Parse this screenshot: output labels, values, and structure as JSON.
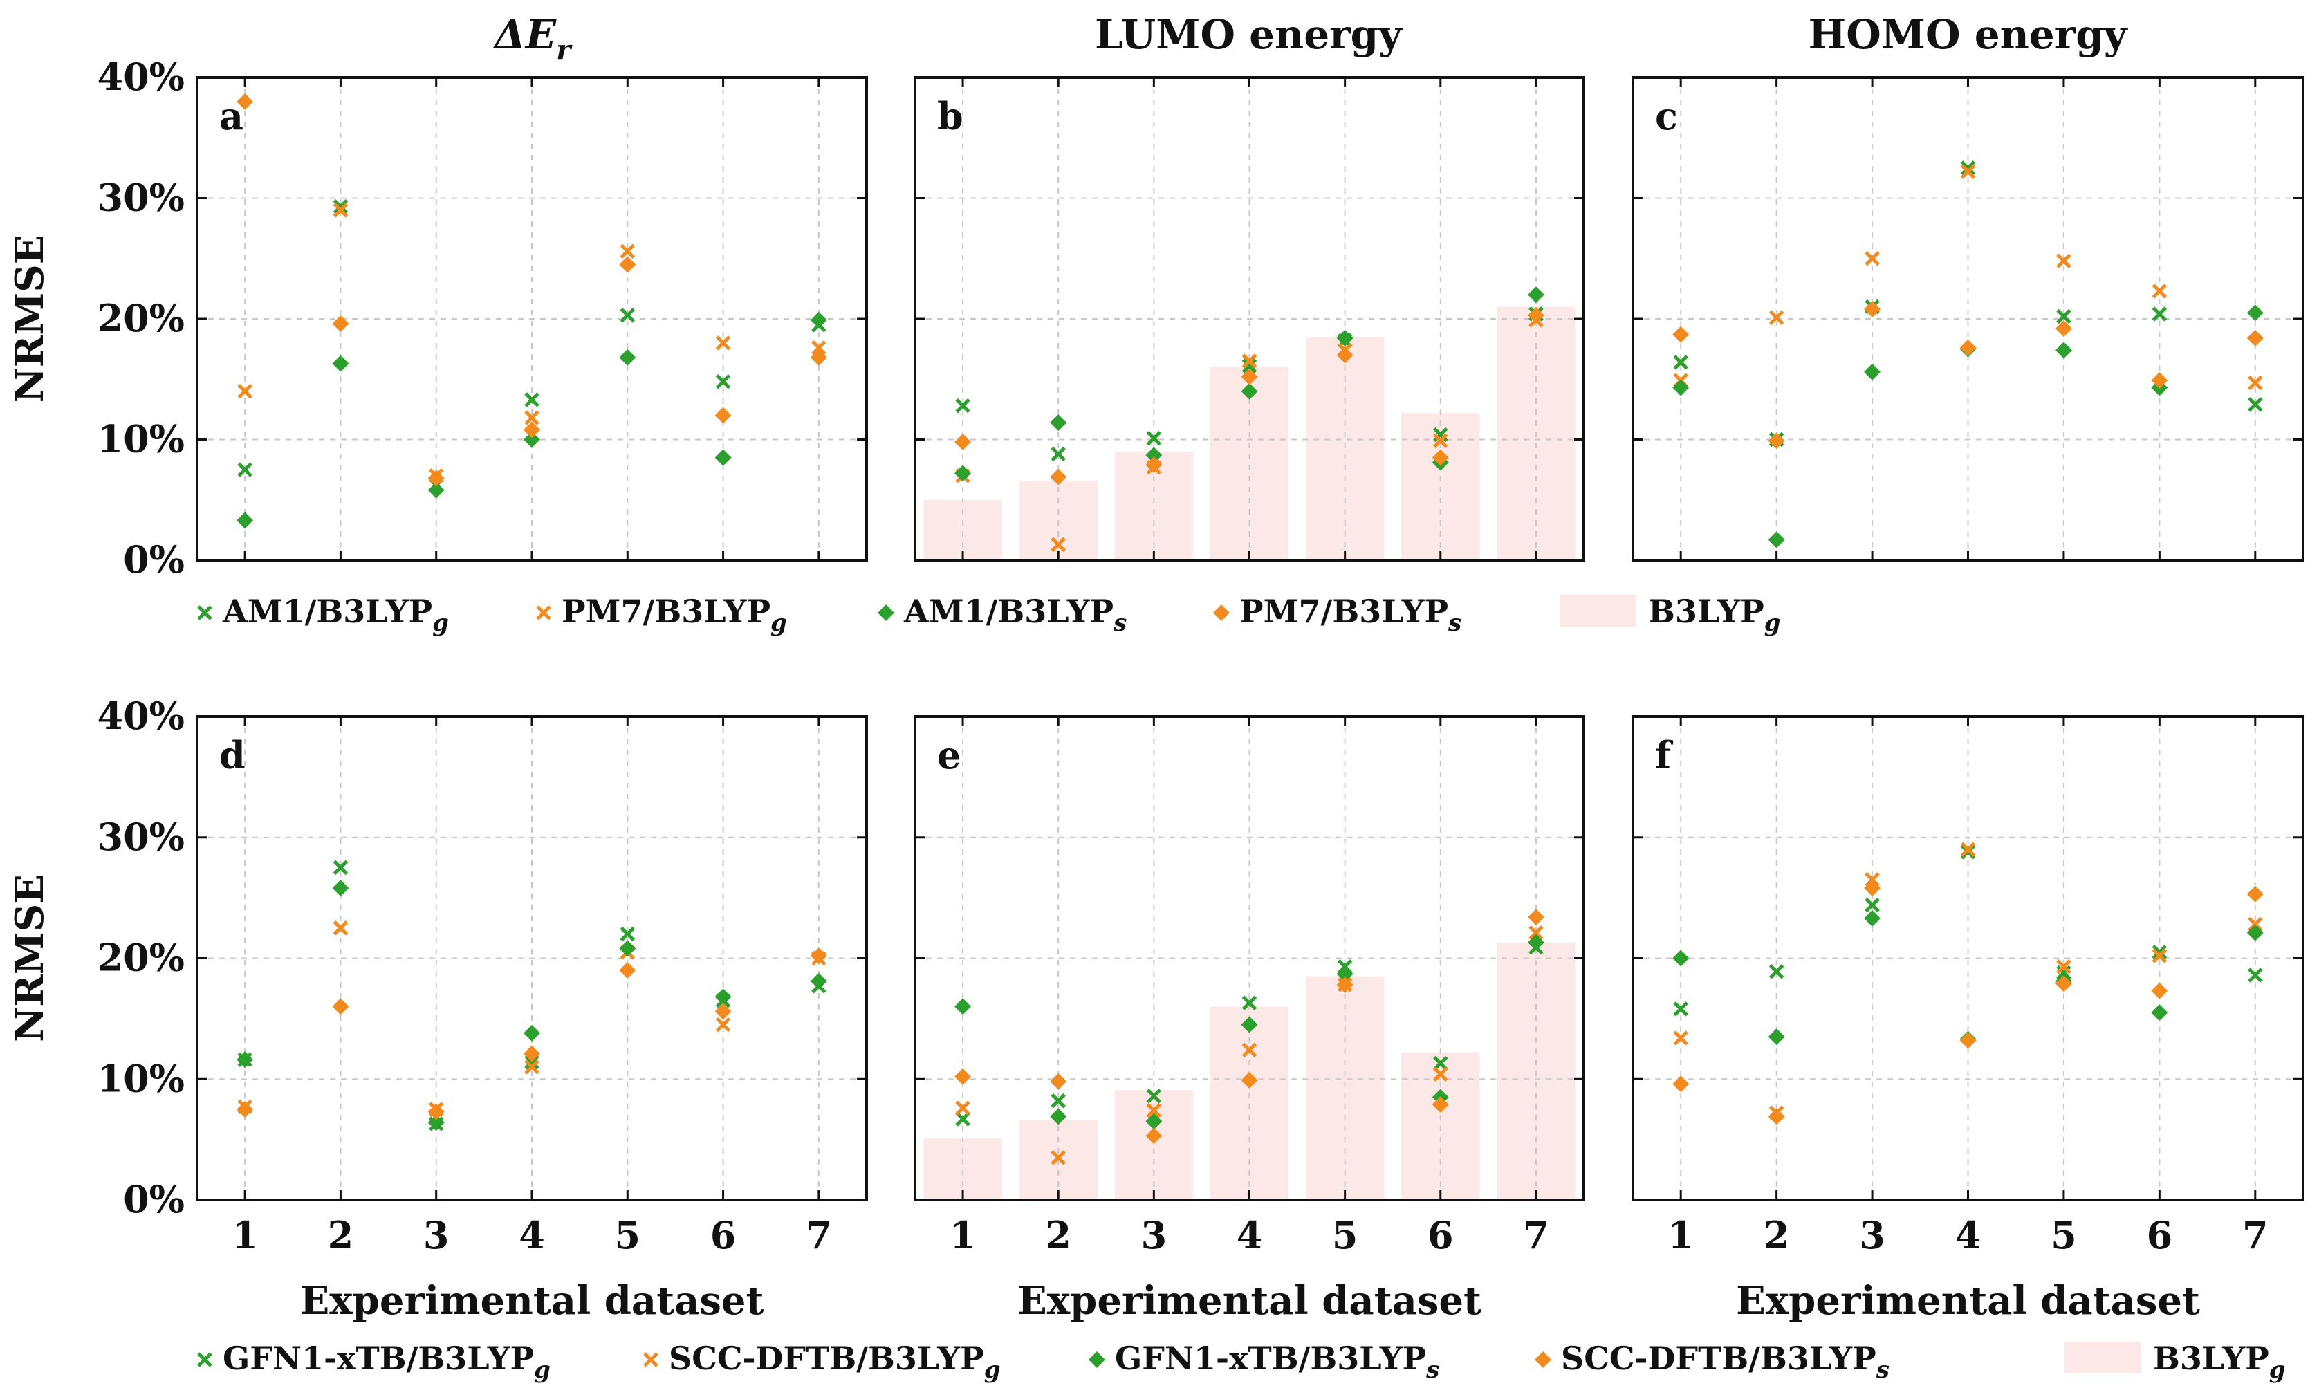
{
  "colors": {
    "green": "#2ca02c",
    "orange": "#f28a1e",
    "bar": "#fde8e8",
    "axis": "#111111"
  },
  "column_titles": [
    "LUMO energy",
    "HOMO energy"
  ],
  "column_title_math": {
    "symbol": "ΔE",
    "subscript": "r"
  },
  "legends": [
    {
      "entries": [
        {
          "marker": "x",
          "color": "green",
          "label": "AM1/B3LYP",
          "sub": "g"
        },
        {
          "marker": "x",
          "color": "orange",
          "label": "PM7/B3LYP",
          "sub": "g"
        },
        {
          "marker": "diamond",
          "color": "green",
          "label": "AM1/B3LYP",
          "sub": "s"
        },
        {
          "marker": "diamond",
          "color": "orange",
          "label": "PM7/B3LYP",
          "sub": "s"
        },
        {
          "marker": "bar",
          "color": "bar",
          "label": "B3LYP",
          "sub": "g"
        }
      ]
    },
    {
      "entries": [
        {
          "marker": "x",
          "color": "green",
          "label": "GFN1-xTB/B3LYP",
          "sub": "g"
        },
        {
          "marker": "x",
          "color": "orange",
          "label": "SCC-DFTB/B3LYP",
          "sub": "g"
        },
        {
          "marker": "diamond",
          "color": "green",
          "label": "GFN1-xTB/B3LYP",
          "sub": "s"
        },
        {
          "marker": "diamond",
          "color": "orange",
          "label": "SCC-DFTB/B3LYP",
          "sub": "s"
        },
        {
          "marker": "bar",
          "color": "bar",
          "label": "B3LYP",
          "sub": "g"
        }
      ]
    }
  ],
  "chart_data": [
    {
      "type": "scatter",
      "panel": "a",
      "row": 0,
      "col": 0,
      "xlabel": "",
      "ylabel": "NRMSE",
      "categories": [
        "1",
        "2",
        "3",
        "4",
        "5",
        "6",
        "7"
      ],
      "yticks": [
        "0%",
        "10%",
        "20%",
        "30%",
        "40%"
      ],
      "ylim": [
        0,
        40
      ],
      "grid": true,
      "bars": null,
      "series": [
        {
          "name": "AM1/B3LYP_g",
          "marker": "x",
          "color": "green",
          "values": [
            7.5,
            29.3,
            6.2,
            13.3,
            20.3,
            14.8,
            19.5
          ]
        },
        {
          "name": "PM7/B3LYP_g",
          "marker": "x",
          "color": "orange",
          "values": [
            14.0,
            29.0,
            7.0,
            11.8,
            25.6,
            18.0,
            17.6
          ]
        },
        {
          "name": "AM1/B3LYP_s",
          "marker": "diamond",
          "color": "green",
          "values": [
            3.3,
            16.3,
            5.8,
            10.0,
            16.8,
            8.5,
            19.9
          ]
        },
        {
          "name": "PM7/B3LYP_s",
          "marker": "diamond",
          "color": "orange",
          "values": [
            38.0,
            19.6,
            6.8,
            10.8,
            24.5,
            12.0,
            16.8
          ]
        }
      ]
    },
    {
      "type": "scatter",
      "panel": "b",
      "row": 0,
      "col": 1,
      "xlabel": "",
      "ylabel": "",
      "categories": [
        "1",
        "2",
        "3",
        "4",
        "5",
        "6",
        "7"
      ],
      "yticks": [
        "0%",
        "10%",
        "20%",
        "30%",
        "40%"
      ],
      "ylim": [
        0,
        40
      ],
      "grid": true,
      "bars": [
        5.0,
        6.6,
        9.0,
        16.0,
        18.5,
        12.2,
        21.0
      ],
      "series": [
        {
          "name": "AM1/B3LYP_g",
          "marker": "x",
          "color": "green",
          "values": [
            12.8,
            8.8,
            10.1,
            16.1,
            18.2,
            10.4,
            20.4
          ]
        },
        {
          "name": "PM7/B3LYP_g",
          "marker": "x",
          "color": "orange",
          "values": [
            7.0,
            1.3,
            7.7,
            16.5,
            17.4,
            9.9,
            19.9
          ]
        },
        {
          "name": "AM1/B3LYP_s",
          "marker": "diamond",
          "color": "green",
          "values": [
            7.2,
            11.4,
            8.7,
            14.0,
            18.4,
            8.1,
            22.0
          ]
        },
        {
          "name": "PM7/B3LYP_s",
          "marker": "diamond",
          "color": "orange",
          "values": [
            9.8,
            6.9,
            7.9,
            15.2,
            17.0,
            8.5,
            20.3
          ]
        }
      ]
    },
    {
      "type": "scatter",
      "panel": "c",
      "row": 0,
      "col": 2,
      "xlabel": "",
      "ylabel": "",
      "categories": [
        "1",
        "2",
        "3",
        "4",
        "5",
        "6",
        "7"
      ],
      "yticks": [
        "0%",
        "10%",
        "20%",
        "30%",
        "40%"
      ],
      "ylim": [
        0,
        40
      ],
      "grid": true,
      "bars": null,
      "series": [
        {
          "name": "AM1/B3LYP_g",
          "marker": "x",
          "color": "green",
          "values": [
            16.4,
            10.0,
            21.0,
            32.5,
            20.2,
            20.4,
            12.9
          ]
        },
        {
          "name": "PM7/B3LYP_g",
          "marker": "x",
          "color": "orange",
          "values": [
            14.9,
            20.1,
            25.0,
            32.2,
            24.8,
            22.3,
            14.7
          ]
        },
        {
          "name": "AM1/B3LYP_s",
          "marker": "diamond",
          "color": "green",
          "values": [
            14.3,
            1.7,
            15.6,
            17.5,
            17.4,
            14.3,
            20.5
          ]
        },
        {
          "name": "PM7/B3LYP_s",
          "marker": "diamond",
          "color": "orange",
          "values": [
            18.7,
            9.9,
            20.8,
            17.6,
            19.2,
            14.9,
            18.4
          ]
        }
      ]
    },
    {
      "type": "scatter",
      "panel": "d",
      "row": 1,
      "col": 0,
      "xlabel": "Experimental dataset",
      "ylabel": "NRMSE",
      "categories": [
        "1",
        "2",
        "3",
        "4",
        "5",
        "6",
        "7"
      ],
      "yticks": [
        "0%",
        "10%",
        "20%",
        "30%",
        "40%"
      ],
      "ylim": [
        0,
        40
      ],
      "grid": true,
      "bars": null,
      "series": [
        {
          "name": "GFN1-xTB/B3LYP_g",
          "marker": "x",
          "color": "green",
          "values": [
            11.6,
            27.5,
            6.3,
            11.4,
            22.0,
            16.5,
            17.7
          ]
        },
        {
          "name": "SCC-DFTB/B3LYP_g",
          "marker": "x",
          "color": "orange",
          "values": [
            7.7,
            22.5,
            7.5,
            11.0,
            20.5,
            14.5,
            20.0
          ]
        },
        {
          "name": "GFN1-xTB/B3LYP_s",
          "marker": "diamond",
          "color": "green",
          "values": [
            11.6,
            25.8,
            6.4,
            13.8,
            20.8,
            16.8,
            18.1
          ]
        },
        {
          "name": "SCC-DFTB/B3LYP_s",
          "marker": "diamond",
          "color": "orange",
          "values": [
            7.5,
            16.0,
            7.3,
            12.1,
            19.0,
            15.6,
            20.2
          ]
        }
      ]
    },
    {
      "type": "scatter",
      "panel": "e",
      "row": 1,
      "col": 1,
      "xlabel": "Experimental dataset",
      "ylabel": "",
      "categories": [
        "1",
        "2",
        "3",
        "4",
        "5",
        "6",
        "7"
      ],
      "yticks": [
        "0%",
        "10%",
        "20%",
        "30%",
        "40%"
      ],
      "ylim": [
        0,
        40
      ],
      "grid": true,
      "bars": [
        5.1,
        6.6,
        9.1,
        16.0,
        18.5,
        12.2,
        21.3
      ],
      "series": [
        {
          "name": "GFN1-xTB/B3LYP_g",
          "marker": "x",
          "color": "green",
          "values": [
            6.7,
            8.2,
            8.6,
            16.3,
            19.3,
            11.3,
            20.9
          ]
        },
        {
          "name": "SCC-DFTB/B3LYP_g",
          "marker": "x",
          "color": "orange",
          "values": [
            7.6,
            3.5,
            7.4,
            12.4,
            17.8,
            10.4,
            22.1
          ]
        },
        {
          "name": "GFN1-xTB/B3LYP_s",
          "marker": "diamond",
          "color": "green",
          "values": [
            16.0,
            6.9,
            6.5,
            14.5,
            18.7,
            8.5,
            21.3
          ]
        },
        {
          "name": "SCC-DFTB/B3LYP_s",
          "marker": "diamond",
          "color": "orange",
          "values": [
            10.2,
            9.8,
            5.3,
            9.9,
            17.8,
            7.9,
            23.4
          ]
        }
      ]
    },
    {
      "type": "scatter",
      "panel": "f",
      "row": 1,
      "col": 2,
      "xlabel": "Experimental dataset",
      "ylabel": "",
      "categories": [
        "1",
        "2",
        "3",
        "4",
        "5",
        "6",
        "7"
      ],
      "yticks": [
        "0%",
        "10%",
        "20%",
        "30%",
        "40%"
      ],
      "ylim": [
        0,
        40
      ],
      "grid": true,
      "bars": null,
      "series": [
        {
          "name": "GFN1-xTB/B3LYP_g",
          "marker": "x",
          "color": "green",
          "values": [
            15.8,
            18.9,
            24.4,
            28.8,
            18.8,
            20.5,
            18.6
          ]
        },
        {
          "name": "SCC-DFTB/B3LYP_g",
          "marker": "x",
          "color": "orange",
          "values": [
            13.4,
            7.2,
            26.5,
            29.0,
            19.3,
            20.2,
            22.8
          ]
        },
        {
          "name": "GFN1-xTB/B3LYP_s",
          "marker": "diamond",
          "color": "green",
          "values": [
            20.0,
            13.5,
            23.3,
            13.3,
            18.1,
            15.5,
            22.1
          ]
        },
        {
          "name": "SCC-DFTB/B3LYP_s",
          "marker": "diamond",
          "color": "orange",
          "values": [
            9.6,
            6.9,
            25.8,
            13.2,
            17.9,
            17.3,
            25.3
          ]
        }
      ]
    }
  ]
}
